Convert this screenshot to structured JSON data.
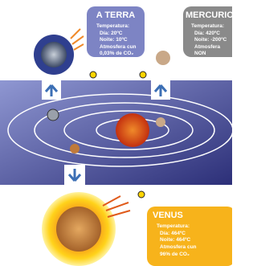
{
  "earth": {
    "title": "A TERRA",
    "temperature": "Temperatura:",
    "day": "Día: 20ºC",
    "night": "Noite: 10ºC",
    "atmosphere": [
      "Atmosfera cun",
      "0,03% de CO₂"
    ]
  },
  "mercury": {
    "title": "MERCURIO",
    "temperature": "Temperatura:",
    "day": "Día: 420ºC",
    "night": "Noite: -200ºC",
    "atmosphere": [
      "Atmosfera",
      "NON"
    ]
  },
  "venus": {
    "title": "VENUS",
    "temperature": "Temperatura:",
    "day": "Día: 464ºC",
    "night": "Noite: 464ºC",
    "atmosphere": [
      "Atmosfera cun",
      "96% de CO₂"
    ]
  }
}
